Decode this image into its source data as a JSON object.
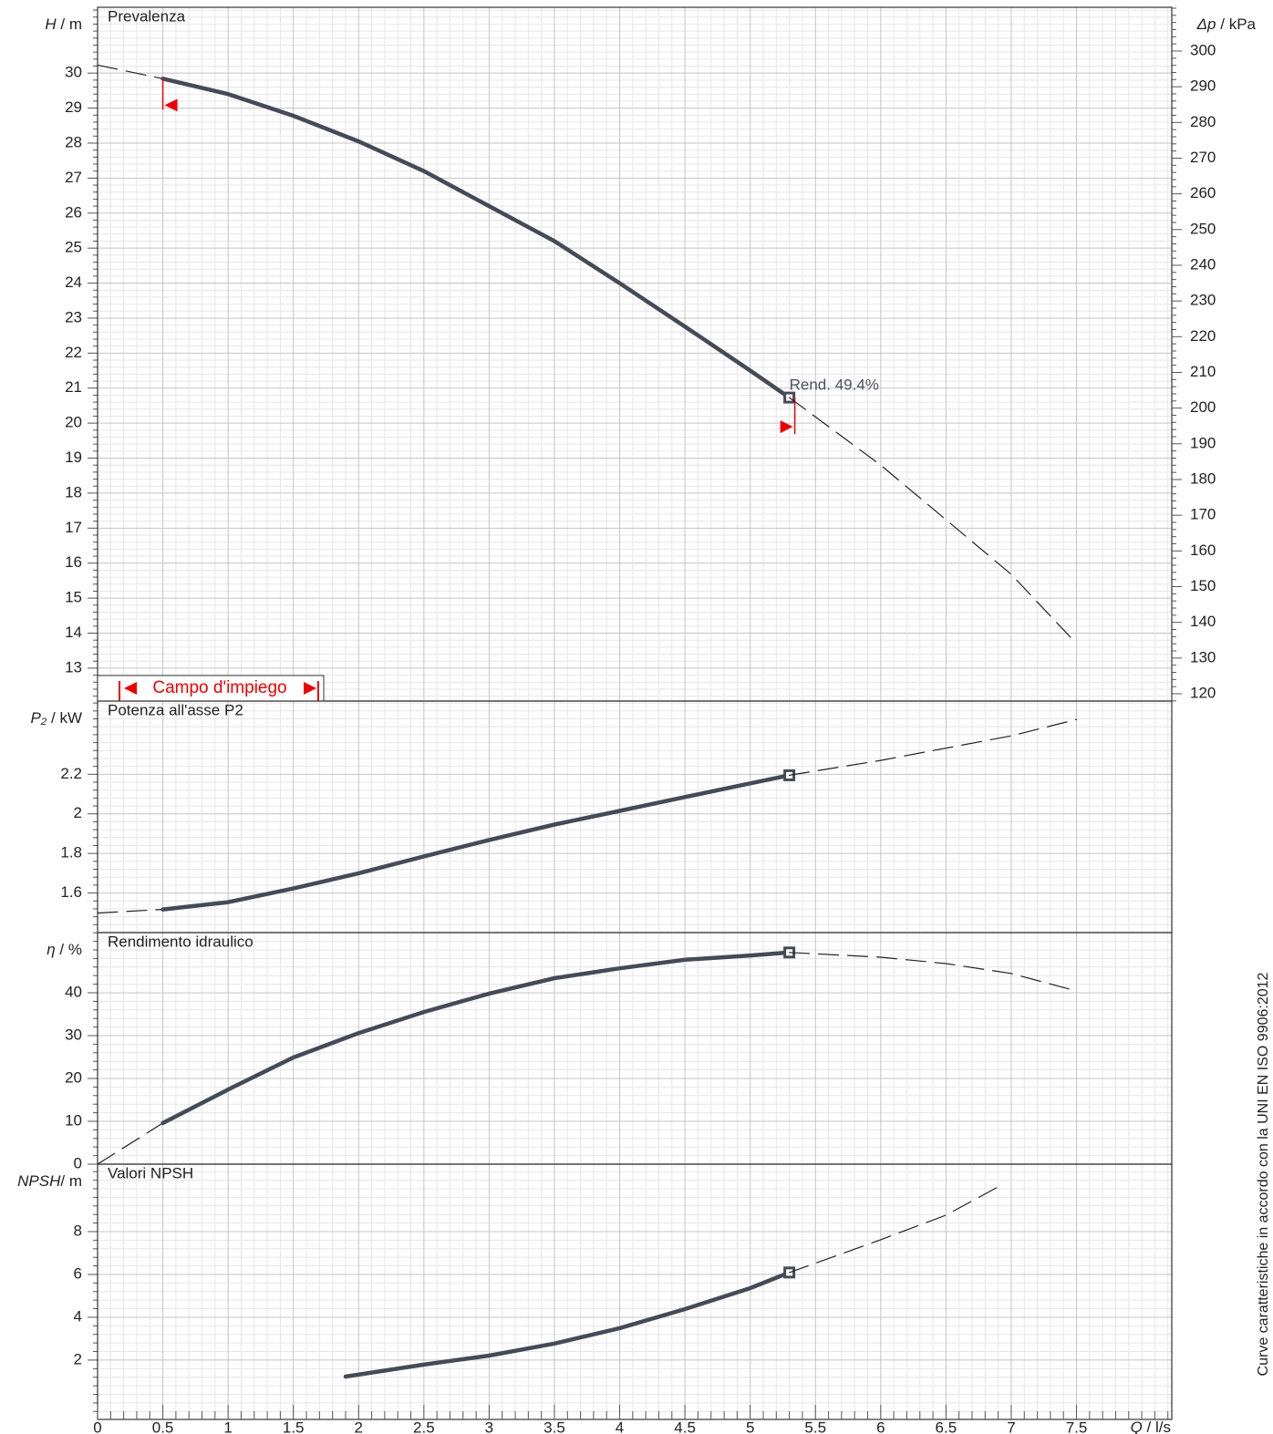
{
  "chart_data": [
    {
      "type": "line",
      "title": "Prevalenza",
      "ylabel": {
        "symbol": "H",
        "unit": " / m"
      },
      "y2label": {
        "symbol": "Δp",
        "unit": " / kPa"
      },
      "ylim": [
        12.06,
        31.88
      ],
      "yticks": [
        13,
        14,
        15,
        16,
        17,
        18,
        19,
        20,
        21,
        22,
        23,
        24,
        25,
        26,
        27,
        28,
        29,
        30
      ],
      "y2lim": [
        117.96,
        312.25
      ],
      "y2ticks": [
        120,
        130,
        140,
        150,
        160,
        170,
        180,
        190,
        200,
        210,
        220,
        230,
        240,
        250,
        260,
        270,
        280,
        290,
        300
      ],
      "annotation": "Rend.  49.4%",
      "operating_range_label": "Campo d'impiego",
      "grid": true,
      "series": [
        {
          "style": "dashed",
          "color": "#222222",
          "x": [
            0,
            0.5
          ],
          "values": [
            30.23,
            29.84
          ]
        },
        {
          "style": "solid",
          "color": "#444b57",
          "x": [
            0.5,
            1,
            1.5,
            2,
            2.5,
            3,
            3.5,
            4,
            4.5,
            5,
            5.3
          ],
          "values": [
            29.84,
            29.4,
            28.78,
            28.05,
            27.2,
            26.2,
            25.2,
            24.0,
            22.76,
            21.5,
            20.73
          ]
        },
        {
          "style": "dashed",
          "color": "#222222",
          "x": [
            5.3,
            6,
            6.5,
            7,
            7.5
          ],
          "values": [
            20.73,
            18.8,
            17.24,
            15.68,
            13.7
          ]
        }
      ]
    },
    {
      "type": "line",
      "title": "Potenza all'asse P2",
      "ylabel": {
        "symbol": "P₂",
        "unit": " / kW"
      },
      "ylim": [
        1.4,
        2.57
      ],
      "yticks": [
        1.6,
        1.8,
        2,
        2.2
      ],
      "grid": true,
      "series": [
        {
          "style": "dashed",
          "color": "#222222",
          "x": [
            0,
            0.5
          ],
          "values": [
            1.499,
            1.517
          ]
        },
        {
          "style": "solid",
          "color": "#444b57",
          "x": [
            0.5,
            1,
            1.5,
            2,
            2.5,
            3,
            3.5,
            4,
            4.5,
            5,
            5.3
          ],
          "values": [
            1.517,
            1.554,
            1.623,
            1.7,
            1.785,
            1.868,
            1.946,
            2.015,
            2.085,
            2.154,
            2.195
          ]
        },
        {
          "style": "dashed",
          "color": "#222222",
          "x": [
            5.3,
            6,
            7,
            7.5
          ],
          "values": [
            2.195,
            2.27,
            2.394,
            2.477
          ]
        }
      ]
    },
    {
      "type": "line",
      "title": "Rendimento idraulico",
      "ylabel": {
        "symbol": "η",
        "unit": " / %"
      },
      "ylim": [
        0,
        54.04
      ],
      "yticks": [
        0,
        10,
        20,
        30,
        40
      ],
      "grid": true,
      "series": [
        {
          "style": "dashed",
          "color": "#222222",
          "x": [
            0,
            0.5
          ],
          "values": [
            0,
            9.6
          ]
        },
        {
          "style": "solid",
          "color": "#444b57",
          "x": [
            0.5,
            1,
            1.5,
            2,
            2.5,
            3,
            3.5,
            4,
            4.5,
            5,
            5.3
          ],
          "values": [
            9.6,
            17.4,
            24.9,
            30.6,
            35.5,
            39.8,
            43.4,
            45.7,
            47.7,
            48.7,
            49.4
          ]
        },
        {
          "style": "dashed",
          "color": "#222222",
          "x": [
            5.3,
            6,
            6.5,
            7,
            7.5
          ],
          "values": [
            49.4,
            48.3,
            46.8,
            44.5,
            40.4
          ]
        }
      ]
    },
    {
      "type": "line",
      "title": "Valori NPSH",
      "ylabel": {
        "symbol": "NPSH",
        "unit": "/ m"
      },
      "xlabel": {
        "symbol": "Q",
        "unit": " / l/s"
      },
      "xlim": [
        0,
        8.23
      ],
      "xticks": [
        0,
        0.5,
        1,
        1.5,
        2,
        2.5,
        3,
        3.5,
        4,
        4.5,
        5,
        5.5,
        6,
        6.5,
        7,
        7.5
      ],
      "ylim": [
        -0.77,
        11.15
      ],
      "yticks": [
        2,
        4,
        6,
        8
      ],
      "grid": true,
      "series": [
        {
          "style": "solid",
          "color": "#444b57",
          "x": [
            1.9,
            2.5,
            3,
            3.5,
            4,
            4.5,
            5,
            5.3
          ],
          "values": [
            1.23,
            1.79,
            2.21,
            2.77,
            3.49,
            4.38,
            5.36,
            6.09
          ]
        },
        {
          "style": "dashed",
          "color": "#222222",
          "x": [
            5.3,
            6,
            6.5,
            6.9
          ],
          "values": [
            6.09,
            7.62,
            8.77,
            10.09
          ]
        }
      ]
    }
  ],
  "note": "Curve caratteristiche in accordo con la UNI EN ISO 9906:2012"
}
